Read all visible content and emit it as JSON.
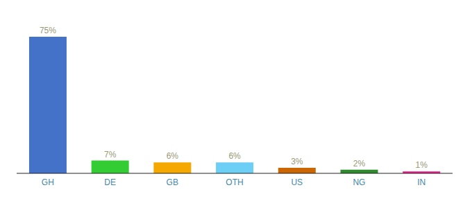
{
  "chart_data": {
    "type": "bar",
    "categories": [
      "GH",
      "DE",
      "GB",
      "OTH",
      "US",
      "NG",
      "IN"
    ],
    "values": [
      75,
      7,
      6,
      6,
      3,
      2,
      1
    ],
    "value_labels": [
      "75%",
      "7%",
      "6%",
      "6%",
      "3%",
      "2%",
      "1%"
    ],
    "colors": [
      "#4472c9",
      "#33cc33",
      "#f5a800",
      "#6dcff6",
      "#cc6600",
      "#2d8a2d",
      "#e91e8c"
    ],
    "ylim": [
      0,
      83
    ],
    "data_labels": true,
    "tick_labels": "x",
    "grid": false
  }
}
